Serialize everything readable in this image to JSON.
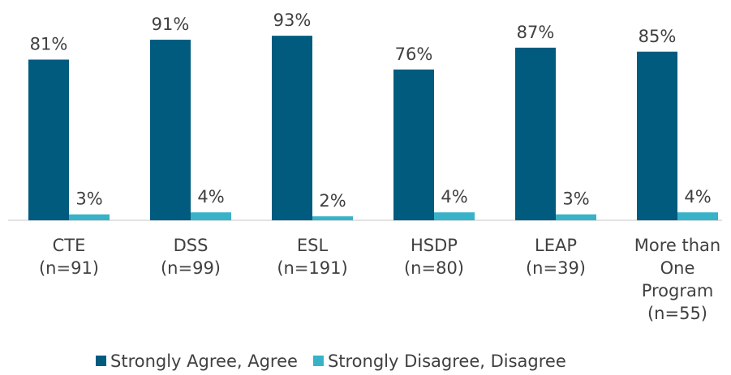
{
  "chart_data": {
    "type": "bar",
    "categories": [
      "CTE\n(n=91)",
      "DSS\n(n=99)",
      "ESL\n(n=191)",
      "HSDP\n(n=80)",
      "LEAP\n(n=39)",
      "More than\nOne\nProgram\n(n=55)"
    ],
    "series": [
      {
        "name": "Strongly Agree, Agree",
        "color": "#005b7f",
        "values": [
          81,
          91,
          93,
          76,
          87,
          85
        ],
        "value_labels": [
          "81%",
          "91%",
          "93%",
          "76%",
          "87%",
          "85%"
        ]
      },
      {
        "name": "Strongly Disagree, Disagree",
        "color": "#38b2c8",
        "values": [
          3,
          4,
          2,
          4,
          3,
          4
        ],
        "value_labels": [
          "3%",
          "4%",
          "2%",
          "4%",
          "3%",
          "4%"
        ]
      }
    ],
    "ylim": [
      0,
      100
    ],
    "legend": "bottom"
  }
}
